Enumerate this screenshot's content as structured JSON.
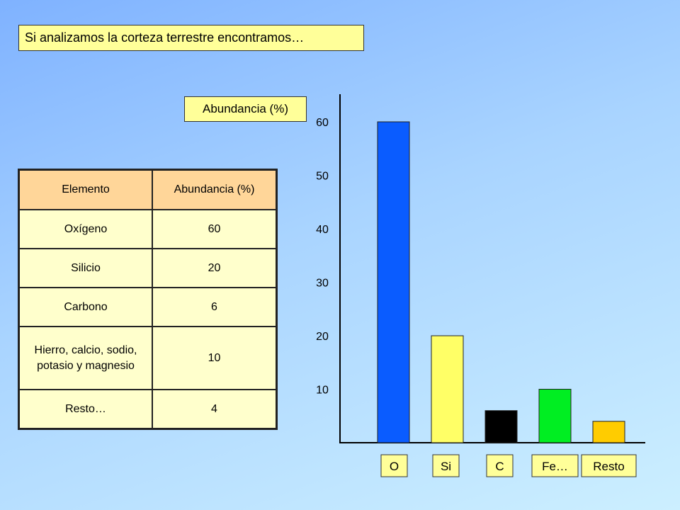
{
  "title": "Si analizamos la corteza terrestre encontramos…",
  "abundance_label": "Abundancia (%)",
  "table": {
    "headers": [
      "Elemento",
      "Abundancia (%)"
    ],
    "rows": [
      [
        "Oxígeno",
        "60"
      ],
      [
        "Silicio",
        "20"
      ],
      [
        "Carbono",
        "6"
      ],
      [
        "Hierro, calcio, sodio, potasio y magnesio",
        "10"
      ],
      [
        "Resto…",
        "4"
      ]
    ]
  },
  "chart_data": {
    "type": "bar",
    "categories": [
      "O",
      "Si",
      "C",
      "Fe…",
      "Resto"
    ],
    "values": [
      60,
      20,
      6,
      10,
      4
    ],
    "colors": [
      "#0a5cff",
      "#ffff66",
      "#000000",
      "#00ee22",
      "#ffcc00"
    ],
    "yticks": [
      10,
      20,
      30,
      40,
      50,
      60
    ],
    "ylim": [
      0,
      65
    ],
    "title": "",
    "xlabel": "",
    "ylabel": "Abundancia (%)",
    "grid": false,
    "legend": false
  }
}
